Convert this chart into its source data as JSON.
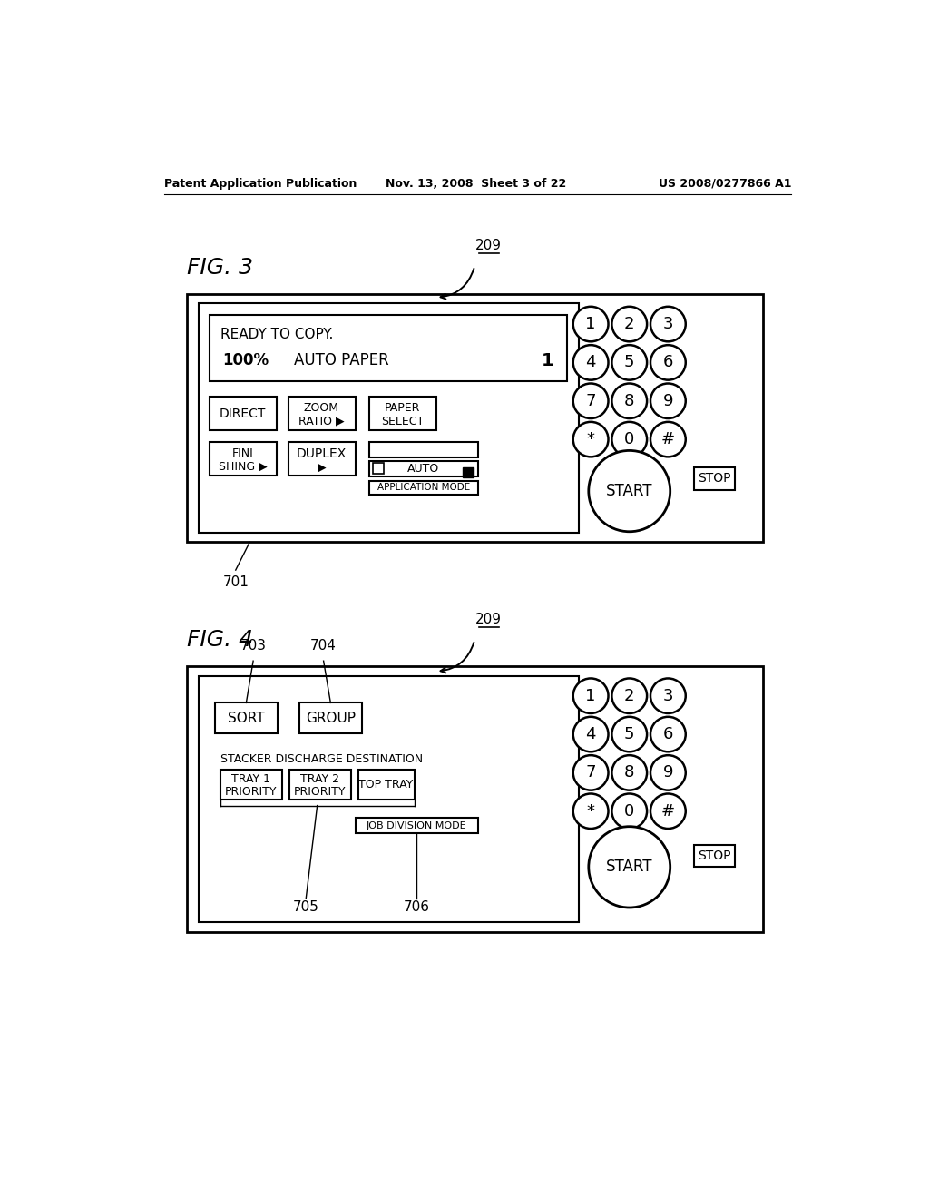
{
  "bg_color": "#ffffff",
  "header_left": "Patent Application Publication",
  "header_center": "Nov. 13, 2008  Sheet 3 of 22",
  "header_right": "US 2008/0277866 A1",
  "fig3_label": "FIG. 3",
  "fig4_label": "FIG. 4",
  "ref_209": "209",
  "ref_701": "701",
  "ref_703": "703",
  "ref_704": "704",
  "ref_705": "705",
  "ref_706": "706",
  "keypad_rows": [
    [
      "1",
      "2",
      "3"
    ],
    [
      "4",
      "5",
      "6"
    ],
    [
      "7",
      "8",
      "9"
    ],
    [
      "*",
      "0",
      "#"
    ]
  ],
  "fig3_display_line1": "READY TO COPY.",
  "fig3_display_line2_a": "100%",
  "fig3_display_line2_b": "AUTO PAPER",
  "fig3_display_line2_c": "1",
  "fig3_btn1": "DIRECT",
  "fig3_btn2_line1": "ZOOM",
  "fig3_btn2_line2": "RATIO ▶",
  "fig3_btn3_line1": "PAPER",
  "fig3_btn3_line2": "SELECT",
  "fig3_btn4_line1": "FINI",
  "fig3_btn4_line2": "SHING ▶",
  "fig3_btn5_line1": "DUPLEX",
  "fig3_btn5_line2": "▶",
  "fig3_auto_label": "AUTO",
  "fig3_app_mode": "APPLICATION MODE",
  "fig3_start": "START",
  "fig3_stop": "STOP",
  "fig4_btn1": "SORT",
  "fig4_btn2": "GROUP",
  "fig4_stacker_label": "STACKER DISCHARGE DESTINATION",
  "fig4_tray1_line1": "TRAY 1",
  "fig4_tray1_line2": "PRIORITY",
  "fig4_tray2_line1": "TRAY 2",
  "fig4_tray2_line2": "PRIORITY",
  "fig4_toptray": "TOP TRAY",
  "fig4_job_div": "JOB DIVISION MODE",
  "fig4_start": "START",
  "fig4_stop": "STOP"
}
